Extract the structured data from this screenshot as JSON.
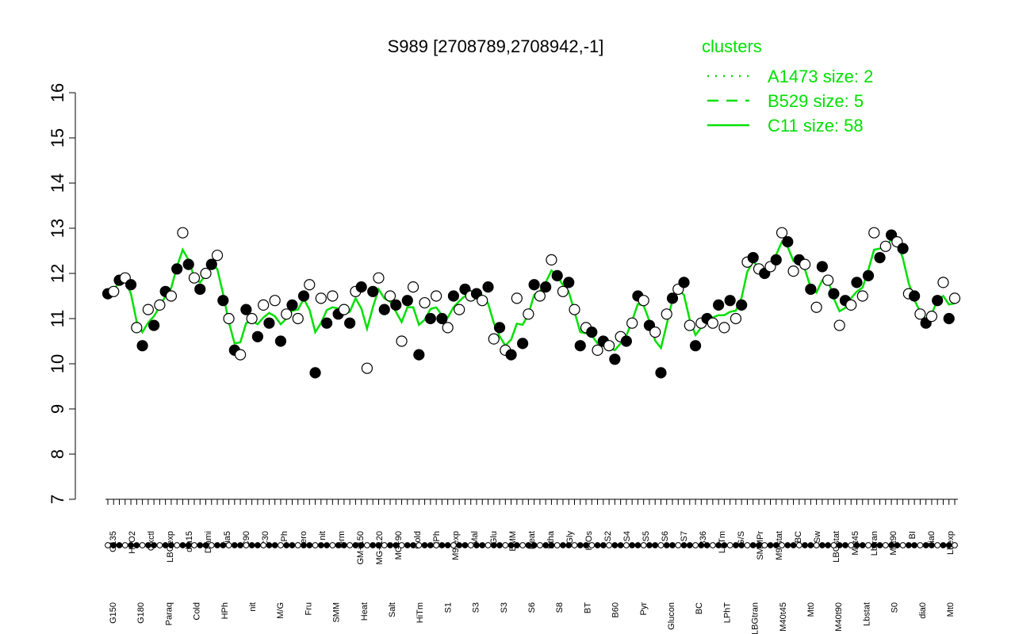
{
  "chart_data": {
    "type": "scatter",
    "title": "S989 [2708789,2708942,-1]",
    "xlabel": "",
    "ylabel": "",
    "ylim": [
      7,
      16
    ],
    "y_ticks": [
      "7",
      "8",
      "9",
      "10",
      "11",
      "12",
      "13",
      "14",
      "15",
      "16"
    ],
    "x_labels_top": [
      "G135",
      "H2O2",
      "Oxctl",
      "LBGexp",
      "dia15",
      "Diami",
      "dia5",
      "C90",
      "C30",
      "LPh",
      "aero",
      "nit",
      "ferm",
      "GM+150",
      "MG+120",
      "MG+90",
      "Cold",
      "HPh",
      "M9-exp",
      "Mal",
      "Glu",
      "BMM",
      "Heat",
      "Etha",
      "Gly",
      "HiOs",
      "S2",
      "S4",
      "S5",
      "S6",
      "S7",
      "B36",
      "LoTm",
      "G/S",
      "SMMPr",
      "M9-stat",
      "BC",
      "Sw",
      "LBGstat",
      "M0t45",
      "Lbtran",
      "M0t90",
      "BI",
      "dia0",
      "Lbexp"
    ],
    "x_labels_bottom": [
      "G150",
      "G180",
      "Paraq",
      "Cold",
      "HPh",
      "nit",
      "M/G",
      "Fru",
      "SMM",
      "Heat",
      "Salt",
      "HiTm",
      "S1",
      "S3",
      "S3",
      "S6",
      "S8",
      "BT",
      "B60",
      "Pyr",
      "Glucon",
      "BC",
      "LPhT",
      "LBGtran",
      "M40t45",
      "Mt0",
      "M40t90",
      "Lbstat",
      "S0",
      "dia0",
      "Mt0"
    ],
    "legend": {
      "title": "clusters",
      "position": "top-right",
      "entries": [
        {
          "label": "A1473 size: 2",
          "style": "dotted"
        },
        {
          "label": "B529 size: 5",
          "style": "dashed"
        },
        {
          "label": "C11 size: 58",
          "style": "solid"
        }
      ]
    },
    "line_color": "#00e000",
    "series": [
      {
        "values": [
          11.55,
          11.6,
          11.85,
          11.9,
          11.75,
          10.8,
          10.4,
          11.2,
          10.85,
          11.3,
          11.6,
          11.5,
          12.1,
          12.9,
          12.2,
          11.9,
          11.65,
          12.0,
          12.2,
          12.4,
          11.4,
          11.0,
          10.3,
          10.2,
          11.2,
          11.0,
          10.6,
          11.3,
          10.9,
          11.4,
          10.5,
          11.1,
          11.3,
          11.0,
          11.5,
          11.75,
          9.8,
          11.45,
          10.9,
          11.5,
          11.1,
          11.2,
          10.9,
          11.6,
          11.7,
          9.9,
          11.6,
          11.9,
          11.2,
          11.5,
          11.3,
          10.5,
          11.4,
          11.7,
          10.2,
          11.35,
          11.0,
          11.5,
          11.0,
          10.8,
          11.5,
          11.2,
          11.65,
          11.5,
          11.55,
          11.4,
          11.7,
          10.55,
          10.8,
          10.3,
          10.2,
          11.45,
          10.45,
          11.1,
          11.75,
          11.5,
          11.7,
          12.3,
          11.95,
          11.6,
          11.8,
          11.2,
          10.4,
          10.8,
          10.7,
          10.3,
          10.5,
          10.4,
          10.1,
          10.6,
          10.5,
          10.9,
          11.5,
          11.4,
          10.85,
          10.7,
          9.8,
          11.1,
          11.45,
          11.65,
          11.8,
          10.85,
          10.4,
          10.9,
          11.0,
          10.9,
          11.3,
          10.8,
          11.4,
          11.0,
          11.3,
          12.25,
          12.35,
          12.1,
          12.0,
          12.15,
          12.3,
          12.9,
          12.7,
          12.05,
          12.3,
          12.2,
          11.65,
          11.25,
          12.15,
          11.85,
          11.55,
          10.85,
          11.4,
          11.3,
          11.8,
          11.5,
          11.95,
          12.9,
          12.35,
          12.6,
          12.85,
          12.7,
          12.55,
          11.55,
          11.5,
          11.1,
          10.9,
          11.05,
          11.4,
          11.8,
          11.0,
          11.45
        ]
      }
    ]
  }
}
